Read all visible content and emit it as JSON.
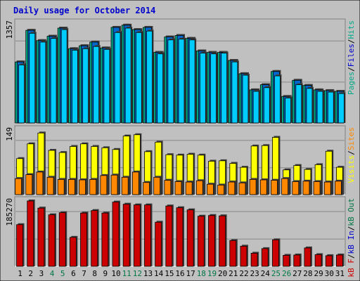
{
  "chart_data": {
    "type": "bar",
    "title": "Daily usage for October 2014",
    "colors": {
      "background": "#c0c0c0",
      "border": "#000000",
      "title": "#0000cc",
      "grid": "#888888",
      "weekday_label": "#000000",
      "weekend_label": "#007744",
      "hits": "#00ccff",
      "files": "#0066cc",
      "pages": "#00aa88",
      "visits": "#ffff00",
      "sites": "#ff8800",
      "kb_f": "#cc0000",
      "kb_in": "#0000cc",
      "kb_out": "#007744"
    },
    "categories": [
      "1",
      "2",
      "3",
      "4",
      "5",
      "6",
      "7",
      "8",
      "9",
      "10",
      "11",
      "12",
      "13",
      "14",
      "15",
      "16",
      "17",
      "18",
      "19",
      "20",
      "21",
      "22",
      "23",
      "24",
      "25",
      "26",
      "27",
      "28",
      "29",
      "30",
      "31"
    ],
    "weekend_days": [
      "4",
      "5",
      "11",
      "12",
      "18",
      "19",
      "25",
      "26"
    ],
    "panels": [
      {
        "id": "hits",
        "max_label": "1357",
        "ymax": 1357,
        "legend": [
          {
            "text": "Pages",
            "color": "#00aa88"
          },
          {
            "text": "/",
            "color": "#000000"
          },
          {
            "text": "Files",
            "color": "#0000cc"
          },
          {
            "text": "/",
            "color": "#000000"
          },
          {
            "text": "Hits",
            "color": "#00aa88"
          }
        ],
        "series": [
          {
            "name": "Pages",
            "values": [
              830,
              1260,
              1120,
              1180,
              1290,
              1010,
              1050,
              1100,
              1020,
              1300,
              1330,
              1270,
              1300,
              960,
              1170,
              1190,
              1150,
              980,
              960,
              960,
              850,
              670,
              450,
              520,
              700,
              360,
              580,
              510,
              450,
              440,
              430
            ]
          },
          {
            "name": "Files",
            "values": [
              830,
              1260,
              1120,
              1180,
              1290,
              1010,
              1050,
              1100,
              1020,
              1300,
              1330,
              1270,
              1300,
              960,
              1170,
              1190,
              1150,
              980,
              960,
              960,
              850,
              670,
              450,
              520,
              700,
              360,
              580,
              510,
              450,
              440,
              430
            ]
          },
          {
            "name": "Hits",
            "values": [
              790,
              1220,
              1100,
              1150,
              1270,
              990,
              1010,
              1040,
              1000,
              1230,
              1290,
              1230,
              1250,
              940,
              1130,
              1140,
              1130,
              950,
              940,
              950,
              830,
              650,
              430,
              480,
              640,
              340,
              520,
              470,
              430,
              420,
              400
            ]
          }
        ]
      },
      {
        "id": "visits",
        "max_label": "149",
        "ymax": 149,
        "legend": [
          {
            "text": "Visits",
            "color": "#ffff00"
          },
          {
            "text": "/",
            "color": "#000000"
          },
          {
            "text": "Sites",
            "color": "#ff8800"
          }
        ],
        "series": [
          {
            "name": "Visits",
            "values": [
              83,
              117,
              142,
              102,
              97,
              111,
              117,
              111,
              108,
              104,
              135,
              138,
              99,
              121,
              92,
              91,
              93,
              91,
              77,
              78,
              72,
              63,
              112,
              113,
              132,
              57,
              67,
              58,
              69,
              100,
              63
            ]
          },
          {
            "name": "Sites",
            "values": [
              37,
              46,
              52,
              40,
              35,
              35,
              34,
              35,
              44,
              45,
              40,
              52,
              28,
              40,
              33,
              30,
              29,
              32,
              24,
              22,
              29,
              27,
              35,
              34,
              33,
              37,
              30,
              31,
              30,
              29,
              31
            ]
          }
        ]
      },
      {
        "id": "kbytes",
        "max_label": "185270",
        "ymax": 185270,
        "legend": [
          {
            "text": "kB F",
            "color": "#cc0000"
          },
          {
            "text": "/",
            "color": "#000000"
          },
          {
            "text": "kB In",
            "color": "#0000cc"
          },
          {
            "text": "/",
            "color": "#000000"
          },
          {
            "text": "kB Out",
            "color": "#007744"
          }
        ],
        "series": [
          {
            "name": "kB F",
            "values": [
              118000,
              185270,
              165000,
              146000,
              152000,
              82000,
              151000,
              158000,
              151000,
              182000,
              176000,
              174000,
              174000,
              125000,
              171000,
              166000,
              160000,
              142000,
              144000,
              143000,
              73000,
              57000,
              37000,
              50000,
              75000,
              31000,
              32000,
              52000,
              33000,
              30000,
              32000
            ]
          }
        ]
      }
    ]
  }
}
